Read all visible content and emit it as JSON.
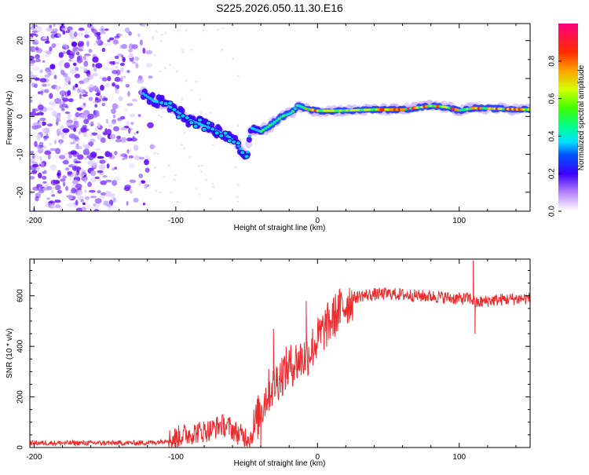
{
  "title": "S225.2026.050.11.30.E16",
  "chart_data": [
    {
      "type": "heatmap",
      "name": "spectrogram",
      "xlabel": "Height of straight line (km)",
      "ylabel": "Frequency (Hz)",
      "xlim": [
        -203,
        150
      ],
      "ylim": [
        -25,
        24.5
      ],
      "xticks": [
        -200,
        -100,
        0,
        100
      ],
      "yticks": [
        -20,
        -10,
        0,
        10,
        20
      ],
      "ridge_center": [
        [
          -123,
          6
        ],
        [
          -115,
          4
        ],
        [
          -108,
          3.5
        ],
        [
          -100,
          1.5
        ],
        [
          -90,
          -1
        ],
        [
          -80,
          -2.5
        ],
        [
          -70,
          -4
        ],
        [
          -62,
          -5.5
        ],
        [
          -55,
          -8
        ],
        [
          -50,
          -11
        ],
        [
          -47,
          -3
        ],
        [
          -40,
          -4
        ],
        [
          -32,
          -2
        ],
        [
          -25,
          0
        ],
        [
          -18,
          1
        ],
        [
          -14,
          3
        ],
        [
          -8,
          2
        ],
        [
          0,
          1.5
        ],
        [
          15,
          1.5
        ],
        [
          40,
          1.8
        ],
        [
          60,
          1.8
        ],
        [
          80,
          2.8
        ],
        [
          90,
          2.5
        ],
        [
          100,
          1.6
        ],
        [
          110,
          2.2
        ],
        [
          150,
          1.8
        ]
      ],
      "colorbar": {
        "label": "Normalized spectral amplitude",
        "range": [
          0,
          1
        ],
        "ticks": [
          0.0,
          0.2,
          0.4,
          0.6,
          0.8
        ],
        "tick_labels": [
          "0.0",
          "0.2",
          "0.4",
          "0.6",
          "0.8"
        ]
      }
    },
    {
      "type": "line",
      "name": "snr",
      "xlabel": "Height of straight line (km)",
      "ylabel": "SNR (10 * v/v)",
      "xlim": [
        -203,
        150
      ],
      "ylim": [
        0,
        745
      ],
      "xticks": [
        -200,
        -100,
        0,
        100
      ],
      "yticks": [
        0,
        200,
        400,
        600
      ],
      "series": [
        {
          "name": "SNR",
          "color": "#ee2a2a",
          "envelope_x": [
            -203,
            -130,
            -115,
            -105,
            -95,
            -85,
            -75,
            -68,
            -62,
            -55,
            -47,
            -42,
            -35,
            -28,
            -22,
            -15,
            -8,
            -2,
            5,
            15,
            25,
            30,
            40,
            50,
            60,
            70,
            80,
            90,
            100,
            108,
            112,
            120,
            130,
            140,
            150
          ],
          "envelope_y": [
            18,
            18,
            20,
            30,
            50,
            60,
            70,
            90,
            80,
            50,
            40,
            120,
            220,
            270,
            310,
            340,
            360,
            410,
            470,
            540,
            590,
            600,
            605,
            608,
            605,
            600,
            598,
            594,
            588,
            590,
            570,
            580,
            585,
            588,
            590
          ],
          "spikes": [
            [
              110,
              740
            ],
            [
              111,
              450
            ],
            [
              -31,
              470
            ],
            [
              -8,
              580
            ],
            [
              -40,
              5
            ]
          ]
        }
      ]
    }
  ],
  "colors": {
    "snr_line": "#ee2a2a",
    "axes": "#000000",
    "background": "#ffffff"
  }
}
